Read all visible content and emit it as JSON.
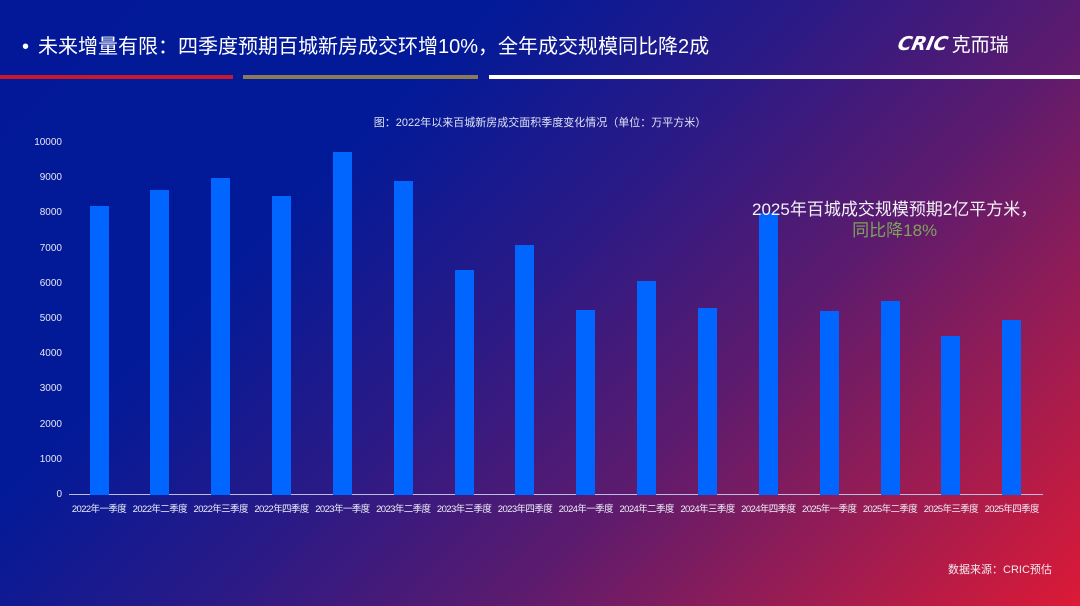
{
  "header": {
    "bullet": "•",
    "title": "未来增量有限：四季度预期百城新房成交环增10%，全年成交规模同比降2成",
    "logo_mark": "CRIC",
    "logo_cn": "克而瑞"
  },
  "colors": {
    "bar": "#0066ff",
    "rule_red": "#c8182e",
    "rule_tan": "#8a7a55",
    "rule_white": "#ffffff",
    "bg_start": "#021898",
    "bg_end": "#dc1a36",
    "annotation_highlight": "#7ea35a"
  },
  "annotation": {
    "line1": "2025年百城成交规模预期2亿平方米，",
    "line2": "同比降18%"
  },
  "source": "数据来源：CRIC预估",
  "chart_data": {
    "type": "bar",
    "title": "图：2022年以来百城新房成交面积季度变化情况（单位：万平方米）",
    "xlabel": "",
    "ylabel": "万平方米",
    "ylim": [
      0,
      10000
    ],
    "yticks": [
      "0",
      "1000",
      "2000",
      "3000",
      "4000",
      "5000",
      "6000",
      "7000",
      "8000",
      "9000",
      "10000"
    ],
    "grid": false,
    "legend": null,
    "categories": [
      "2022年一季度",
      "2022年二季度",
      "2022年三季度",
      "2022年四季度",
      "2023年一季度",
      "2023年二季度",
      "2023年三季度",
      "2023年四季度",
      "2024年一季度",
      "2024年二季度",
      "2024年三季度",
      "2024年四季度",
      "2025年一季度",
      "2025年二季度",
      "2025年三季度",
      "2025年四季度"
    ],
    "values": [
      8210,
      8660,
      9000,
      8500,
      9750,
      8930,
      6380,
      7100,
      5250,
      6090,
      5310,
      8000,
      5230,
      5500,
      4520,
      4970
    ],
    "annotations": [
      "2025年百城成交规模预期2亿平方米，同比降18%"
    ]
  }
}
